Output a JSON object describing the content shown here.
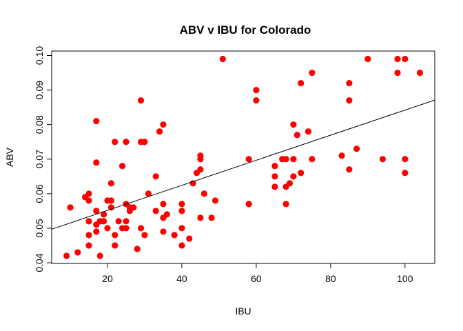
{
  "chart_data": {
    "type": "scatter",
    "title": "ABV v IBU for Colorado",
    "xlabel": "IBU",
    "ylabel": "ABV",
    "xlim": [
      5,
      108
    ],
    "ylim": [
      0.0398,
      0.1013
    ],
    "x_ticks": [
      20,
      40,
      60,
      80,
      100
    ],
    "x_tick_labels": [
      "20",
      "40",
      "60",
      "80",
      "100"
    ],
    "y_ticks": [
      0.04,
      0.05,
      0.06,
      0.07,
      0.08,
      0.09,
      0.1
    ],
    "y_tick_labels": [
      "0.04",
      "0.05",
      "0.06",
      "0.07",
      "0.08",
      "0.09",
      "0.10"
    ],
    "grid": false,
    "point_color": "#ff0000",
    "line_color": "#000000",
    "regression_line": {
      "x": [
        5,
        108
      ],
      "y": [
        0.0497,
        0.0871
      ]
    },
    "points": [
      {
        "x": 9,
        "y": 0.042
      },
      {
        "x": 10,
        "y": 0.056
      },
      {
        "x": 12,
        "y": 0.043
      },
      {
        "x": 14,
        "y": 0.059
      },
      {
        "x": 15,
        "y": 0.06
      },
      {
        "x": 15,
        "y": 0.058
      },
      {
        "x": 15,
        "y": 0.052
      },
      {
        "x": 15,
        "y": 0.048
      },
      {
        "x": 15,
        "y": 0.045
      },
      {
        "x": 17,
        "y": 0.081
      },
      {
        "x": 17,
        "y": 0.069
      },
      {
        "x": 17,
        "y": 0.055
      },
      {
        "x": 17,
        "y": 0.051
      },
      {
        "x": 17,
        "y": 0.049
      },
      {
        "x": 18,
        "y": 0.052
      },
      {
        "x": 18,
        "y": 0.042
      },
      {
        "x": 19,
        "y": 0.054
      },
      {
        "x": 19,
        "y": 0.052
      },
      {
        "x": 20,
        "y": 0.058
      },
      {
        "x": 20,
        "y": 0.05
      },
      {
        "x": 21,
        "y": 0.063
      },
      {
        "x": 21,
        "y": 0.058
      },
      {
        "x": 21,
        "y": 0.056
      },
      {
        "x": 22,
        "y": 0.075
      },
      {
        "x": 22,
        "y": 0.048
      },
      {
        "x": 22,
        "y": 0.045
      },
      {
        "x": 23,
        "y": 0.052
      },
      {
        "x": 24,
        "y": 0.068
      },
      {
        "x": 24,
        "y": 0.05
      },
      {
        "x": 25,
        "y": 0.075
      },
      {
        "x": 25,
        "y": 0.057
      },
      {
        "x": 25,
        "y": 0.052
      },
      {
        "x": 25,
        "y": 0.05
      },
      {
        "x": 26,
        "y": 0.056
      },
      {
        "x": 26,
        "y": 0.055
      },
      {
        "x": 27,
        "y": 0.056
      },
      {
        "x": 28,
        "y": 0.044
      },
      {
        "x": 29,
        "y": 0.087
      },
      {
        "x": 29,
        "y": 0.075
      },
      {
        "x": 29,
        "y": 0.05
      },
      {
        "x": 30,
        "y": 0.075
      },
      {
        "x": 30,
        "y": 0.048
      },
      {
        "x": 31,
        "y": 0.06
      },
      {
        "x": 33,
        "y": 0.065
      },
      {
        "x": 33,
        "y": 0.055
      },
      {
        "x": 34,
        "y": 0.078
      },
      {
        "x": 35,
        "y": 0.08
      },
      {
        "x": 35,
        "y": 0.057
      },
      {
        "x": 35,
        "y": 0.053
      },
      {
        "x": 35,
        "y": 0.049
      },
      {
        "x": 36,
        "y": 0.054
      },
      {
        "x": 38,
        "y": 0.048
      },
      {
        "x": 40,
        "y": 0.057
      },
      {
        "x": 40,
        "y": 0.055
      },
      {
        "x": 40,
        "y": 0.05
      },
      {
        "x": 40,
        "y": 0.045
      },
      {
        "x": 42,
        "y": 0.047
      },
      {
        "x": 43,
        "y": 0.063
      },
      {
        "x": 44,
        "y": 0.066
      },
      {
        "x": 45,
        "y": 0.071
      },
      {
        "x": 45,
        "y": 0.07
      },
      {
        "x": 45,
        "y": 0.067
      },
      {
        "x": 45,
        "y": 0.053
      },
      {
        "x": 46,
        "y": 0.06
      },
      {
        "x": 48,
        "y": 0.053
      },
      {
        "x": 49,
        "y": 0.058
      },
      {
        "x": 51,
        "y": 0.099
      },
      {
        "x": 58,
        "y": 0.07
      },
      {
        "x": 58,
        "y": 0.057
      },
      {
        "x": 60,
        "y": 0.09
      },
      {
        "x": 60,
        "y": 0.087
      },
      {
        "x": 65,
        "y": 0.068
      },
      {
        "x": 65,
        "y": 0.065
      },
      {
        "x": 65,
        "y": 0.062
      },
      {
        "x": 67,
        "y": 0.07
      },
      {
        "x": 68,
        "y": 0.07
      },
      {
        "x": 68,
        "y": 0.062
      },
      {
        "x": 68,
        "y": 0.057
      },
      {
        "x": 69,
        "y": 0.063
      },
      {
        "x": 70,
        "y": 0.08
      },
      {
        "x": 70,
        "y": 0.07
      },
      {
        "x": 70,
        "y": 0.065
      },
      {
        "x": 71,
        "y": 0.077
      },
      {
        "x": 72,
        "y": 0.092
      },
      {
        "x": 72,
        "y": 0.066
      },
      {
        "x": 74,
        "y": 0.078
      },
      {
        "x": 75,
        "y": 0.095
      },
      {
        "x": 75,
        "y": 0.07
      },
      {
        "x": 83,
        "y": 0.071
      },
      {
        "x": 85,
        "y": 0.092
      },
      {
        "x": 85,
        "y": 0.087
      },
      {
        "x": 85,
        "y": 0.067
      },
      {
        "x": 87,
        "y": 0.073
      },
      {
        "x": 90,
        "y": 0.099
      },
      {
        "x": 94,
        "y": 0.07
      },
      {
        "x": 98,
        "y": 0.099
      },
      {
        "x": 98,
        "y": 0.095
      },
      {
        "x": 100,
        "y": 0.099
      },
      {
        "x": 100,
        "y": 0.07
      },
      {
        "x": 100,
        "y": 0.066
      },
      {
        "x": 104,
        "y": 0.095
      }
    ]
  }
}
